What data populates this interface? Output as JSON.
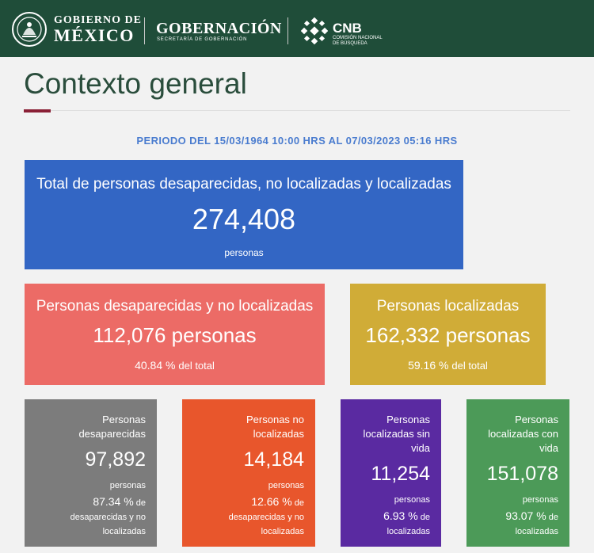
{
  "header": {
    "gob_small": "GOBIERNO DE",
    "gob_big": "MÉXICO",
    "gobernacion": "GOBERNACIÓN",
    "gobernacion_sub": "SECRETARÍA DE GOBERNACIÓN",
    "cnb_title": "CNB",
    "cnb_sub_1": "COMISIÓN NACIONAL",
    "cnb_sub_2": "DE BÚSQUEDA",
    "bar_color": "#1f4d39"
  },
  "title": "Contexto general",
  "period": "PERIODO DEL 15/03/1964 10:00 HRS AL 07/03/2023 05:16 HRS",
  "total": {
    "label": "Total de personas desaparecidas, no localizadas y localizadas",
    "value": "274,408",
    "unit": "personas",
    "color": "#3366c4"
  },
  "desaparecidas_no_localizadas": {
    "label": "Personas desaparecidas y no localizadas",
    "value": "112,076 personas",
    "pct": "40.84 %",
    "pct_suffix": "del total",
    "color": "#ec6b66"
  },
  "localizadas": {
    "label": "Personas localizadas",
    "value": "162,332 personas",
    "pct": "59.16 %",
    "pct_suffix": "del total",
    "color": "#d0ac37"
  },
  "breakdown": {
    "desaparecidas": {
      "label_1": "Personas",
      "label_2": "desaparecidas",
      "value": "97,892",
      "unit": "personas",
      "pct": "87.34 %",
      "pct_de": "de",
      "ref_1": "desaparecidas y no",
      "ref_2": "localizadas",
      "color": "#7c7c7c"
    },
    "no_localizadas": {
      "label_1": "Personas no",
      "label_2": "localizadas",
      "value": "14,184",
      "unit": "personas",
      "pct": "12.66 %",
      "pct_de": "de",
      "ref_1": "desaparecidas y no",
      "ref_2": "localizadas",
      "color": "#e8562c"
    },
    "sin_vida": {
      "label_1": "Personas",
      "label_2": "localizadas sin",
      "label_3": "vida",
      "value": "11,254",
      "unit": "personas",
      "pct": "6.93 %",
      "pct_de": "de",
      "ref_1": "localizadas",
      "color": "#5a2aa1"
    },
    "con_vida": {
      "label_1": "Personas",
      "label_2": "localizadas con",
      "label_3": "vida",
      "value": "151,078",
      "unit": "personas",
      "pct": "93.07 %",
      "pct_de": "de",
      "ref_1": "localizadas",
      "color": "#4c9a58"
    }
  }
}
